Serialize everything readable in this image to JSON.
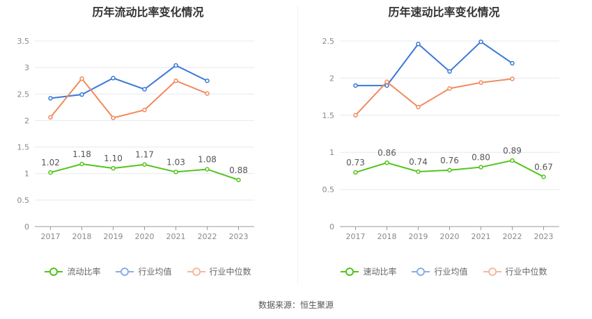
{
  "source": "数据来源：恒生聚源",
  "chart_data": [
    {
      "type": "line",
      "title": "历年流动比率变化情况",
      "categories": [
        "2017",
        "2018",
        "2019",
        "2020",
        "2021",
        "2022",
        "2023"
      ],
      "ylim": [
        0,
        3.5
      ],
      "yticks": [
        "0",
        "0.5",
        "1",
        "1.5",
        "2",
        "2.5",
        "3",
        "3.5"
      ],
      "grid": true,
      "legend_position": "bottom",
      "series": [
        {
          "name": "流动比率",
          "color": "#52c41a",
          "values": [
            1.02,
            1.18,
            1.1,
            1.17,
            1.03,
            1.08,
            0.88
          ],
          "labels": [
            "1.02",
            "1.18",
            "1.10",
            "1.17",
            "1.03",
            "1.08",
            "0.88"
          ]
        },
        {
          "name": "行业均值",
          "color": "#3a78d8",
          "values": [
            2.42,
            2.49,
            2.8,
            2.59,
            3.04,
            2.75,
            null
          ]
        },
        {
          "name": "行业中位数",
          "color": "#f08a5d",
          "values": [
            2.06,
            2.79,
            2.05,
            2.2,
            2.75,
            2.51,
            null
          ]
        }
      ]
    },
    {
      "type": "line",
      "title": "历年速动比率变化情况",
      "categories": [
        "2017",
        "2018",
        "2019",
        "2020",
        "2021",
        "2022",
        "2023"
      ],
      "ylim": [
        0,
        2.5
      ],
      "yticks": [
        "0",
        "0.5",
        "1",
        "1.5",
        "2",
        "2.5"
      ],
      "grid": true,
      "legend_position": "bottom",
      "series": [
        {
          "name": "速动比率",
          "color": "#52c41a",
          "values": [
            0.73,
            0.86,
            0.74,
            0.76,
            0.8,
            0.89,
            0.67
          ],
          "labels": [
            "0.73",
            "0.86",
            "0.74",
            "0.76",
            "0.80",
            "0.89",
            "0.67"
          ]
        },
        {
          "name": "行业均值",
          "color": "#3a78d8",
          "values": [
            1.9,
            1.9,
            2.46,
            2.09,
            2.49,
            2.2,
            null
          ]
        },
        {
          "name": "行业中位数",
          "color": "#f08a5d",
          "values": [
            1.5,
            1.95,
            1.61,
            1.86,
            1.94,
            1.99,
            null
          ]
        }
      ]
    }
  ]
}
